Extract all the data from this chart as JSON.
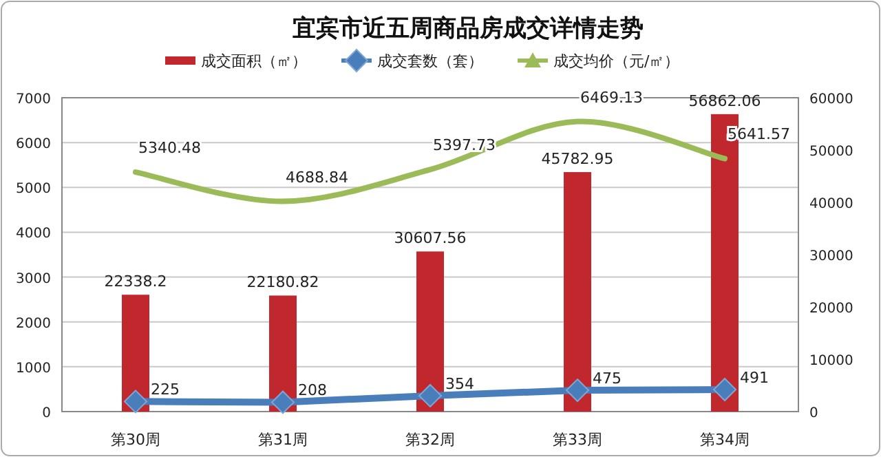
{
  "chart_data": {
    "type": "bar",
    "title": "宜宾市近五周商品房成交详情走势",
    "categories": [
      "第30周",
      "第31周",
      "第32周",
      "第33周",
      "第34周"
    ],
    "series": [
      {
        "name": "成交面积（㎡）",
        "axis": "y2",
        "color": "#c0282d",
        "values": [
          22338.2,
          22180.82,
          30607.56,
          45782.95,
          56862.06
        ]
      },
      {
        "name": "成交套数（套）",
        "type": "line",
        "marker": "diamond",
        "line_style": "solid",
        "color": "#4a7ebb",
        "values": [
          225,
          208,
          354,
          475,
          491
        ]
      },
      {
        "name": "成交均价（元/㎡）",
        "type": "line",
        "marker": "none",
        "line_style": "solid",
        "color": "#9bbb59",
        "values": [
          5340.48,
          4688.84,
          5397.73,
          6469.13,
          5641.57
        ]
      }
    ],
    "ylim": [
      0,
      7000
    ],
    "yticks": [
      0,
      1000,
      2000,
      3000,
      4000,
      5000,
      6000,
      7000
    ],
    "y2lim": [
      0,
      60000
    ],
    "y2ticks": [
      0,
      10000,
      20000,
      30000,
      40000,
      50000,
      60000
    ],
    "grid": "y",
    "legend": "top",
    "data_labels": true
  }
}
